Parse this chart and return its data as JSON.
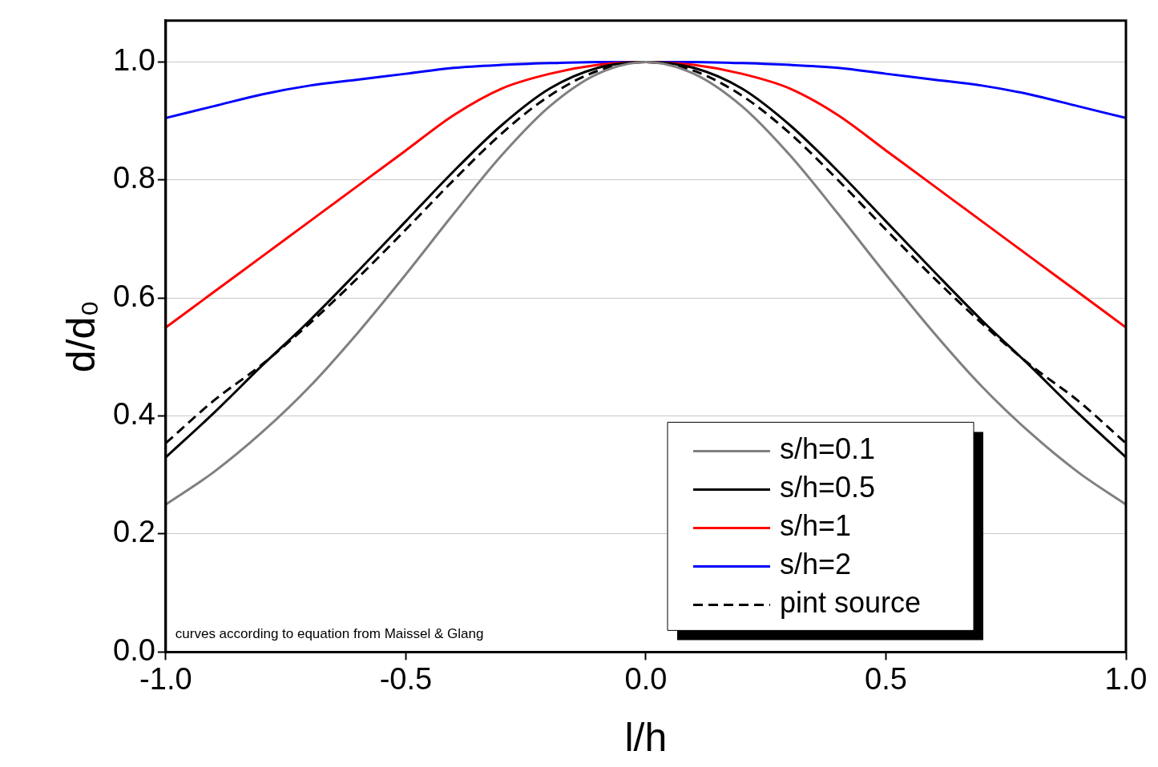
{
  "chart_data": {
    "type": "line",
    "xlabel": "l/h",
    "ylabel": "d/d₀",
    "x": [
      -1,
      -0.9,
      -0.8,
      -0.7,
      -0.6,
      -0.5,
      -0.4,
      -0.3,
      -0.2,
      -0.1,
      0,
      0.1,
      0.2,
      0.3,
      0.4,
      0.5,
      0.6,
      0.7,
      0.8,
      0.9,
      1
    ],
    "series": [
      {
        "name": "s/h=0.1",
        "color": "#808080",
        "line_style": "solid",
        "values": [
          0.25,
          0.305,
          0.372,
          0.45,
          0.541,
          0.64,
          0.743,
          0.842,
          0.925,
          0.98,
          1,
          0.98,
          0.925,
          0.842,
          0.743,
          0.64,
          0.541,
          0.45,
          0.372,
          0.305,
          0.25
        ]
      },
      {
        "name": "s/h=0.5",
        "color": "#000000",
        "line_style": "solid",
        "values": [
          0.33,
          0.405,
          0.485,
          0.562,
          0.645,
          0.73,
          0.815,
          0.893,
          0.955,
          0.99,
          1,
          0.99,
          0.955,
          0.893,
          0.815,
          0.73,
          0.645,
          0.562,
          0.485,
          0.405,
          0.33
        ]
      },
      {
        "name": "s/h=1",
        "color": "#ff0000",
        "line_style": "solid",
        "values": [
          0.55,
          0.61,
          0.67,
          0.73,
          0.79,
          0.85,
          0.91,
          0.955,
          0.98,
          0.995,
          1,
          0.995,
          0.98,
          0.955,
          0.91,
          0.85,
          0.79,
          0.73,
          0.67,
          0.61,
          0.55
        ]
      },
      {
        "name": "s/h=2",
        "color": "#0000ff",
        "line_style": "solid",
        "values": [
          0.905,
          0.925,
          0.945,
          0.96,
          0.97,
          0.98,
          0.99,
          0.995,
          0.998,
          1,
          1,
          1,
          0.998,
          0.995,
          0.99,
          0.98,
          0.97,
          0.96,
          0.945,
          0.925,
          0.905
        ]
      },
      {
        "name": "pint source",
        "color": "#000000",
        "line_style": "dashed",
        "values": [
          0.354,
          0.426,
          0.487,
          0.557,
          0.634,
          0.716,
          0.8,
          0.879,
          0.943,
          0.985,
          1,
          0.985,
          0.943,
          0.879,
          0.8,
          0.716,
          0.634,
          0.557,
          0.487,
          0.426,
          0.354
        ]
      }
    ],
    "xlim": [
      -1,
      1
    ],
    "xticks": [
      {
        "value": -1,
        "label": "-1.0"
      },
      {
        "value": -0.5,
        "label": "-0.5"
      },
      {
        "value": 0,
        "label": "0.0"
      },
      {
        "value": 0.5,
        "label": "0.5"
      },
      {
        "value": 1,
        "label": "1.0"
      }
    ],
    "ylim": [
      0,
      1.07
    ],
    "yticks": [
      {
        "value": 0,
        "label": "0.0"
      },
      {
        "value": 0.2,
        "label": "0.2"
      },
      {
        "value": 0.4,
        "label": "0.4"
      },
      {
        "value": 0.6,
        "label": "0.6"
      },
      {
        "value": 0.8,
        "label": "0.8"
      },
      {
        "value": 1,
        "label": "1.0"
      }
    ],
    "grid": "y",
    "legend": "bottom right",
    "marker": "none",
    "annotations": [
      "curves according to equation from Maissel & Glang"
    ]
  }
}
